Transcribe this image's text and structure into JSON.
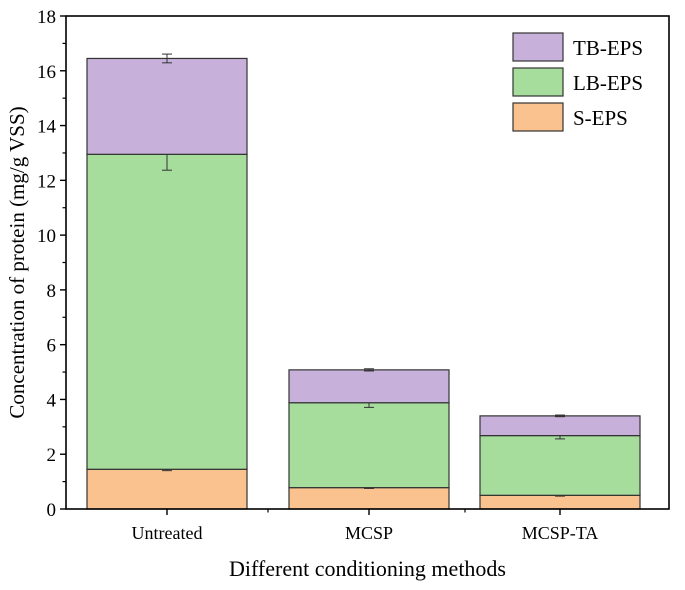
{
  "chart_data": {
    "type": "bar",
    "stacked": true,
    "categories": [
      "Untreated",
      "MCSP",
      "MCSP-TA"
    ],
    "series": [
      {
        "name": "S-EPS",
        "color": "#f9c28e",
        "values": [
          1.45,
          0.78,
          0.5
        ],
        "errors": [
          0.05,
          0.03,
          0.03
        ]
      },
      {
        "name": "LB-EPS",
        "color": "#a6dd9d",
        "values": [
          11.5,
          3.1,
          2.18
        ],
        "errors": [
          0.58,
          0.17,
          0.12
        ]
      },
      {
        "name": "TB-EPS",
        "color": "#c7b1da",
        "values": [
          3.5,
          1.2,
          0.72
        ],
        "errors": [
          0.16,
          0.04,
          0.03
        ]
      }
    ],
    "legend_order": [
      "TB-EPS",
      "LB-EPS",
      "S-EPS"
    ],
    "legend_position": "top-right",
    "xlabel": "Different conditioning methods",
    "ylabel": "Concentration of protein (mg/g VSS)",
    "ylim": [
      0,
      18
    ],
    "yticks": [
      0,
      2,
      4,
      6,
      8,
      10,
      12,
      14,
      16,
      18
    ],
    "ytick_labels": [
      "0",
      "2",
      "4",
      "6",
      "8",
      "10",
      "12",
      "14",
      "16",
      "18"
    ],
    "grid": false
  }
}
